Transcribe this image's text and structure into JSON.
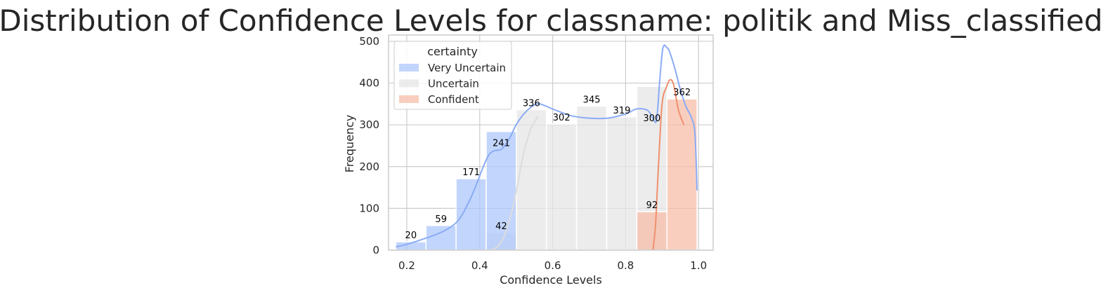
{
  "chart_data": {
    "type": "bar",
    "title": "Distribution of Confidence Levels for classname: politik and Miss_classified",
    "xlabel": "Confidence Levels",
    "ylabel": "Frequency",
    "xlim": [
      0.15,
      1.04
    ],
    "ylim": [
      0,
      515
    ],
    "xticks": [
      0.2,
      0.4,
      0.6,
      0.8,
      1.0
    ],
    "xtick_labels": [
      "0.2",
      "0.4",
      "0.6",
      "0.8",
      "1.0"
    ],
    "yticks": [
      0,
      100,
      200,
      300,
      400,
      500
    ],
    "ytick_labels": [
      "0",
      "100",
      "200",
      "300",
      "400",
      "500"
    ],
    "grid": true,
    "bin_edges": [
      0.17,
      0.2526,
      0.3352,
      0.4178,
      0.5004,
      0.583,
      0.6656,
      0.7482,
      0.8308,
      0.9134,
      0.996
    ],
    "series": [
      {
        "name": "Very Uncertain",
        "color": "#aec7fb",
        "line_color": "#8aabf5",
        "bins": [
          {
            "bin": 0,
            "value": 20,
            "label": "20"
          },
          {
            "bin": 1,
            "value": 59,
            "label": "59"
          },
          {
            "bin": 2,
            "value": 171,
            "label": "171"
          },
          {
            "bin": 3,
            "value": 284,
            "label": "241"
          }
        ],
        "kde": [
          [
            0.17,
            8
          ],
          [
            0.2,
            14
          ],
          [
            0.25,
            28
          ],
          [
            0.3,
            45
          ],
          [
            0.34,
            70
          ],
          [
            0.37,
            115
          ],
          [
            0.39,
            155
          ],
          [
            0.41,
            200
          ],
          [
            0.425,
            228
          ],
          [
            0.44,
            238
          ],
          [
            0.46,
            242
          ],
          [
            0.48,
            265
          ],
          [
            0.5,
            300
          ],
          [
            0.52,
            325
          ],
          [
            0.545,
            345
          ],
          [
            0.565,
            350
          ],
          [
            0.6,
            338
          ],
          [
            0.65,
            322
          ],
          [
            0.7,
            316
          ],
          [
            0.75,
            316
          ],
          [
            0.8,
            326
          ],
          [
            0.83,
            338
          ],
          [
            0.86,
            335
          ],
          [
            0.875,
            315
          ],
          [
            0.885,
            312
          ],
          [
            0.893,
            400
          ],
          [
            0.9,
            470
          ],
          [
            0.905,
            490
          ],
          [
            0.912,
            486
          ],
          [
            0.92,
            476
          ],
          [
            0.935,
            435
          ],
          [
            0.95,
            385
          ],
          [
            0.965,
            345
          ],
          [
            0.98,
            318
          ],
          [
            0.99,
            280
          ],
          [
            0.996,
            143
          ]
        ]
      },
      {
        "name": "Uncertain",
        "color": "#e6e6e6",
        "line_color": "#dcdcdc",
        "bins": [
          {
            "bin": 3,
            "value": 42,
            "label": "42"
          },
          {
            "bin": 4,
            "value": 336,
            "label": "336"
          },
          {
            "bin": 5,
            "value": 302,
            "label": "302"
          },
          {
            "bin": 6,
            "value": 345,
            "label": "345"
          },
          {
            "bin": 7,
            "value": 319,
            "label": "319"
          },
          {
            "bin": 8,
            "value": 392,
            "label": "300"
          }
        ],
        "kde": [
          [
            0.43,
            0
          ],
          [
            0.45,
            10
          ],
          [
            0.47,
            40
          ],
          [
            0.49,
            100
          ],
          [
            0.5,
            140
          ],
          [
            0.52,
            230
          ],
          [
            0.54,
            290
          ],
          [
            0.56,
            320
          ]
        ]
      },
      {
        "name": "Confident",
        "color": "#f7bda8",
        "line_color": "#f0906e",
        "bins": [
          {
            "bin": 8,
            "value": 92,
            "label": "92"
          },
          {
            "bin": 9,
            "value": 362,
            "label": "362"
          }
        ],
        "kde": [
          [
            0.875,
            0
          ],
          [
            0.882,
            60
          ],
          [
            0.89,
            200
          ],
          [
            0.9,
            350
          ],
          [
            0.912,
            390
          ],
          [
            0.922,
            408
          ],
          [
            0.932,
            395
          ],
          [
            0.945,
            335
          ],
          [
            0.96,
            300
          ]
        ]
      }
    ],
    "legend": {
      "title": "certainty",
      "position": "top-left",
      "entries": [
        "Very Uncertain",
        "Uncertain",
        "Confident"
      ]
    }
  }
}
